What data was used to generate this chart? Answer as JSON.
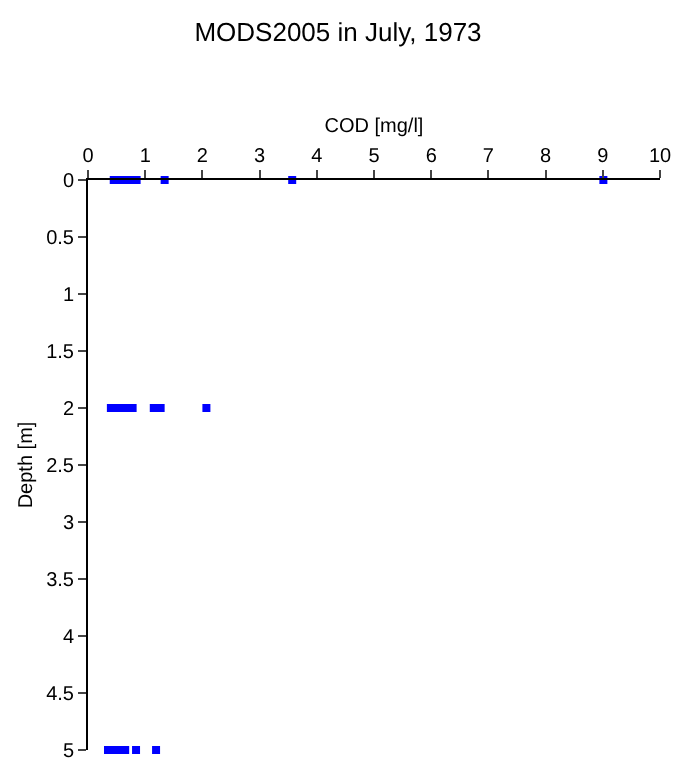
{
  "chart_data": {
    "type": "scatter",
    "title": "MODS2005 in July, 1973",
    "xlabel": "COD [mg/l]",
    "ylabel": "Depth [m]",
    "x": [
      0.45,
      0.55,
      0.65,
      0.75,
      0.85,
      1.34,
      3.57,
      9.01,
      0.4,
      0.5,
      0.6,
      0.7,
      0.78,
      1.15,
      1.27,
      2.07,
      0.35,
      0.45,
      0.55,
      0.65,
      0.84,
      1.19
    ],
    "series": [
      {
        "color": "#0000ff",
        "values": [
          0,
          0,
          0,
          0,
          0,
          0,
          0,
          0,
          2,
          2,
          2,
          2,
          2,
          2,
          2,
          2,
          5,
          5,
          5,
          5,
          5,
          5
        ]
      }
    ],
    "marker": "square",
    "grid": false,
    "xlim": [
      0,
      10
    ],
    "xticks": [
      0,
      1,
      2,
      3,
      4,
      5,
      6,
      7,
      8,
      9,
      10
    ],
    "ylim": [
      5,
      0
    ],
    "yticks": [
      0,
      0.5,
      1,
      1.5,
      2,
      2.5,
      3,
      3.5,
      4,
      4.5,
      5
    ]
  }
}
